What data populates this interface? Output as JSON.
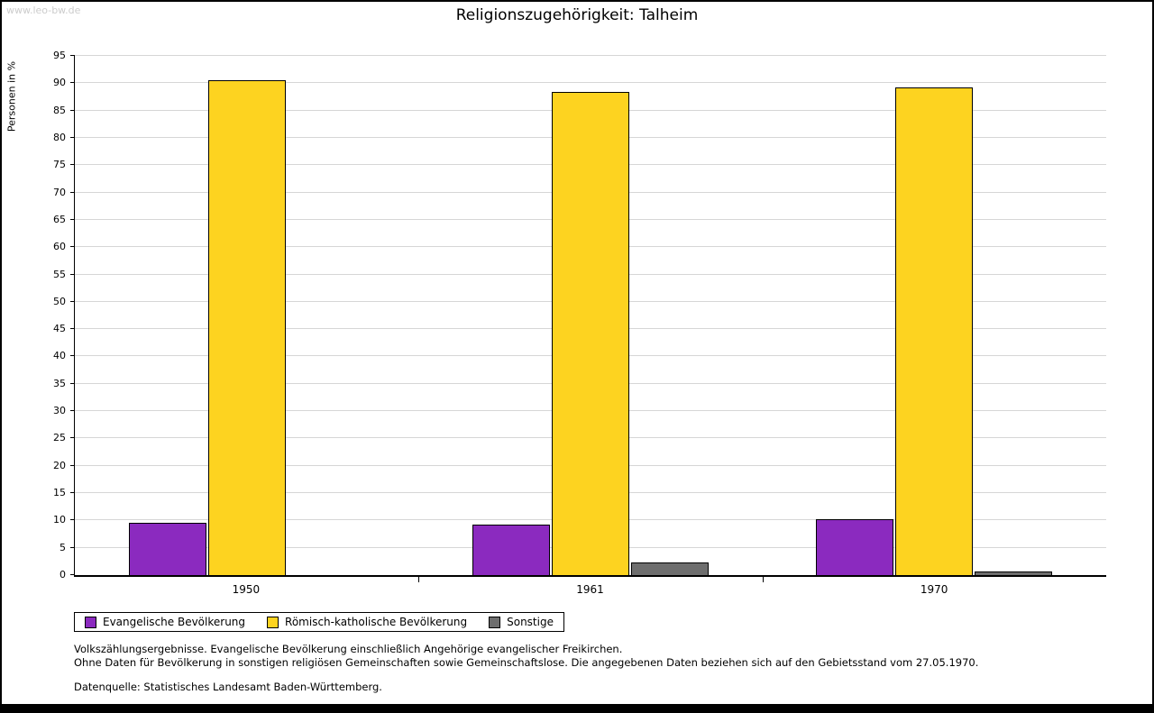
{
  "page": {
    "watermark": "www.leo-bw.de"
  },
  "chart_data": {
    "type": "bar",
    "title": "Religionszugehörigkeit: Talheim",
    "ylabel": "Personen in %",
    "xlabel": "",
    "ylim": [
      0,
      95
    ],
    "ytick_step": 5,
    "grid": true,
    "legend_position": "bottom-left",
    "categories": [
      "1950",
      "1961",
      "1970"
    ],
    "series": [
      {
        "name": "Evangelische Bevölkerung",
        "color": "#8b2abf",
        "values": [
          9.5,
          9.3,
          10.2
        ]
      },
      {
        "name": "Römisch-katholische Bevölkerung",
        "color": "#fdd320",
        "values": [
          90.5,
          88.4,
          89.2
        ]
      },
      {
        "name": "Sonstige",
        "color": "#6e6e6e",
        "values": [
          0,
          2.3,
          0.6
        ]
      }
    ]
  },
  "footer": {
    "line1": "Volkszählungsergebnisse. Evangelische Bevölkerung einschließlich Angehörige evangelischer Freikirchen.",
    "line2": "Ohne Daten für Bevölkerung in sonstigen religiösen Gemeinschaften sowie Gemeinschaftslose. Die angegebenen Daten beziehen sich auf den Gebietsstand vom 27.05.1970.",
    "line3": "Datenquelle: Statistisches Landesamt Baden-Württemberg."
  }
}
